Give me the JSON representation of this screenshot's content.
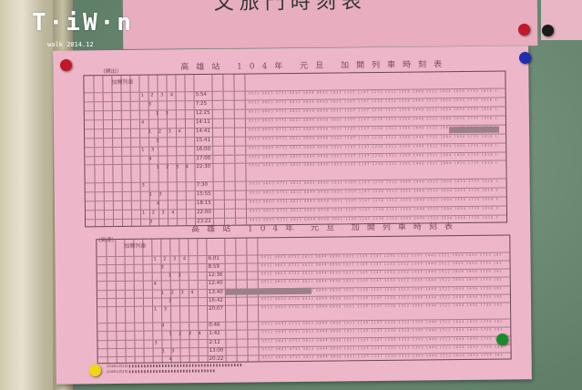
{
  "top_paper_text": "文旅門時刻表",
  "sheet": {
    "departure": {
      "label": "(開出)",
      "title": "高雄站 104年 元旦 加開列車時刻表",
      "header_left": "加開列車",
      "times": [
        "5:54",
        "7:25",
        "12:25",
        "14:11",
        "14:41",
        "15:41",
        "16:00",
        "17:00",
        "22:30",
        "7:30",
        "15:55",
        "18:15",
        "22:00",
        "23:22"
      ]
    },
    "arrival": {
      "label": "(到達)",
      "title": "高雄站 104年 元旦 加開列車時刻表",
      "header_left": "加開列車",
      "times": [
        "6:01",
        "8:59",
        "12:36",
        "12:40",
        "13:40",
        "16:42",
        "20:07",
        "0:46",
        "1:42",
        "2:12",
        "13:00",
        "20:22"
      ]
    }
  },
  "watermark": {
    "main": "Taiwan",
    "sub": "walk 2014.12"
  },
  "magnet_colors": [
    "#c0182a",
    "#1f2db0",
    "#c0182a",
    "#1a1a1a",
    "#1a8a2a",
    "#f2d614"
  ],
  "colors": {
    "paper": "#eeb7c9",
    "board": "#6f8f78"
  }
}
